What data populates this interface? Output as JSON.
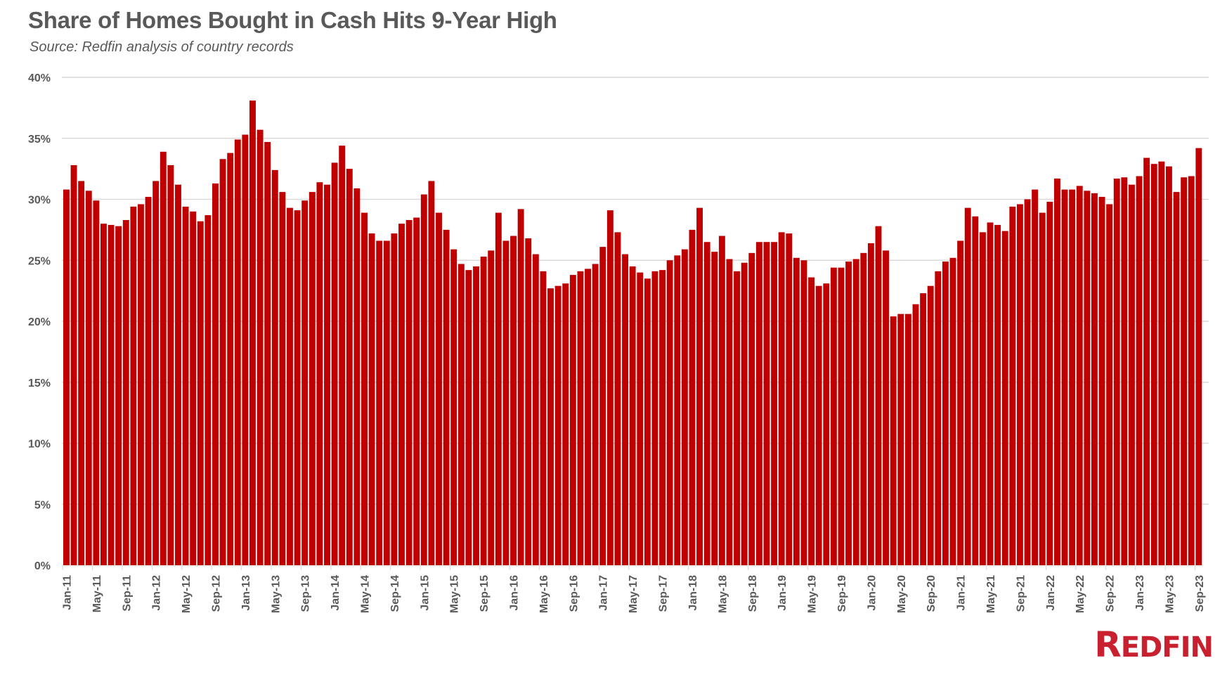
{
  "chart_data": {
    "type": "bar",
    "title": "Share of Homes Bought in Cash Hits 9-Year High",
    "subtitle": "Source: Redfin analysis of country records",
    "xlabel": "",
    "ylabel": "",
    "ylim": [
      0,
      40
    ],
    "y_ticks": [
      "0%",
      "5%",
      "10%",
      "15%",
      "20%",
      "25%",
      "30%",
      "35%",
      "40%"
    ],
    "y_tick_values": [
      0,
      5,
      10,
      15,
      20,
      25,
      30,
      35,
      40
    ],
    "grid": true,
    "legend": "none",
    "bar_color": "#c00000",
    "tick_label_every": 4,
    "categories": [
      "Jan-11",
      "Feb-11",
      "Mar-11",
      "Apr-11",
      "May-11",
      "Jun-11",
      "Jul-11",
      "Aug-11",
      "Sep-11",
      "Oct-11",
      "Nov-11",
      "Dec-11",
      "Jan-12",
      "Feb-12",
      "Mar-12",
      "Apr-12",
      "May-12",
      "Jun-12",
      "Jul-12",
      "Aug-12",
      "Sep-12",
      "Oct-12",
      "Nov-12",
      "Dec-12",
      "Jan-13",
      "Feb-13",
      "Mar-13",
      "Apr-13",
      "May-13",
      "Jun-13",
      "Jul-13",
      "Aug-13",
      "Sep-13",
      "Oct-13",
      "Nov-13",
      "Dec-13",
      "Jan-14",
      "Feb-14",
      "Mar-14",
      "Apr-14",
      "May-14",
      "Jun-14",
      "Jul-14",
      "Aug-14",
      "Sep-14",
      "Oct-14",
      "Nov-14",
      "Dec-14",
      "Jan-15",
      "Feb-15",
      "Mar-15",
      "Apr-15",
      "May-15",
      "Jun-15",
      "Jul-15",
      "Aug-15",
      "Sep-15",
      "Oct-15",
      "Nov-15",
      "Dec-15",
      "Jan-16",
      "Feb-16",
      "Mar-16",
      "Apr-16",
      "May-16",
      "Jun-16",
      "Jul-16",
      "Aug-16",
      "Sep-16",
      "Oct-16",
      "Nov-16",
      "Dec-16",
      "Jan-17",
      "Feb-17",
      "Mar-17",
      "Apr-17",
      "May-17",
      "Jun-17",
      "Jul-17",
      "Aug-17",
      "Sep-17",
      "Oct-17",
      "Nov-17",
      "Dec-17",
      "Jan-18",
      "Feb-18",
      "Mar-18",
      "Apr-18",
      "May-18",
      "Jun-18",
      "Jul-18",
      "Aug-18",
      "Sep-18",
      "Oct-18",
      "Nov-18",
      "Dec-18",
      "Jan-19",
      "Feb-19",
      "Mar-19",
      "Apr-19",
      "May-19",
      "Jun-19",
      "Jul-19",
      "Aug-19",
      "Sep-19",
      "Oct-19",
      "Nov-19",
      "Dec-19",
      "Jan-20",
      "Feb-20",
      "Mar-20",
      "Apr-20",
      "May-20",
      "Jun-20",
      "Jul-20",
      "Aug-20",
      "Sep-20",
      "Oct-20",
      "Nov-20",
      "Dec-20",
      "Jan-21",
      "Feb-21",
      "Mar-21",
      "Apr-21",
      "May-21",
      "Jun-21",
      "Jul-21",
      "Aug-21",
      "Sep-21",
      "Oct-21",
      "Nov-21",
      "Dec-21",
      "Jan-22",
      "Feb-22",
      "Mar-22",
      "Apr-22",
      "May-22",
      "Jun-22",
      "Jul-22",
      "Aug-22",
      "Sep-22",
      "Oct-22",
      "Nov-22",
      "Dec-22",
      "Jan-23",
      "Feb-23",
      "Mar-23",
      "Apr-23",
      "May-23",
      "Jun-23",
      "Jul-23",
      "Aug-23",
      "Sep-23"
    ],
    "values": [
      30.8,
      32.8,
      31.5,
      30.7,
      29.9,
      28.0,
      27.9,
      27.8,
      28.3,
      29.4,
      29.6,
      30.2,
      31.5,
      33.9,
      32.8,
      31.2,
      29.4,
      29.0,
      28.2,
      28.7,
      31.3,
      33.3,
      33.8,
      34.9,
      35.3,
      38.1,
      35.7,
      34.7,
      32.4,
      30.6,
      29.3,
      29.1,
      29.9,
      30.6,
      31.4,
      31.2,
      33.0,
      34.4,
      32.5,
      30.9,
      28.9,
      27.2,
      26.6,
      26.6,
      27.2,
      28.0,
      28.3,
      28.5,
      30.4,
      31.5,
      28.9,
      27.5,
      25.9,
      24.7,
      24.2,
      24.5,
      25.3,
      25.8,
      28.9,
      26.6,
      27.0,
      29.2,
      26.8,
      25.5,
      24.1,
      22.7,
      22.9,
      23.1,
      23.8,
      24.1,
      24.3,
      24.7,
      26.1,
      29.1,
      27.3,
      25.5,
      24.5,
      24.0,
      23.5,
      24.1,
      24.2,
      25.0,
      25.4,
      25.9,
      27.5,
      29.3,
      26.5,
      25.7,
      27.0,
      25.1,
      24.1,
      24.8,
      25.6,
      26.5,
      26.5,
      26.5,
      27.3,
      27.2,
      25.2,
      25.0,
      23.6,
      22.9,
      23.1,
      24.4,
      24.4,
      24.9,
      25.1,
      25.6,
      26.4,
      27.8,
      25.8,
      20.4,
      20.6,
      20.6,
      21.4,
      22.3,
      22.9,
      24.1,
      24.9,
      25.2,
      26.6,
      29.3,
      28.6,
      27.3,
      28.1,
      27.9,
      27.4,
      29.4,
      29.6,
      30.0,
      30.8,
      28.9,
      29.8,
      31.7,
      30.8,
      30.8,
      31.1,
      30.7,
      30.5,
      30.2,
      29.6,
      31.7,
      31.8,
      31.2,
      31.9,
      33.4,
      32.9,
      33.1,
      32.7,
      30.6,
      31.8,
      31.9,
      34.2
    ]
  },
  "logo": {
    "text": "REDFIN",
    "first_letter": "R",
    "rest": "EDFIN"
  }
}
